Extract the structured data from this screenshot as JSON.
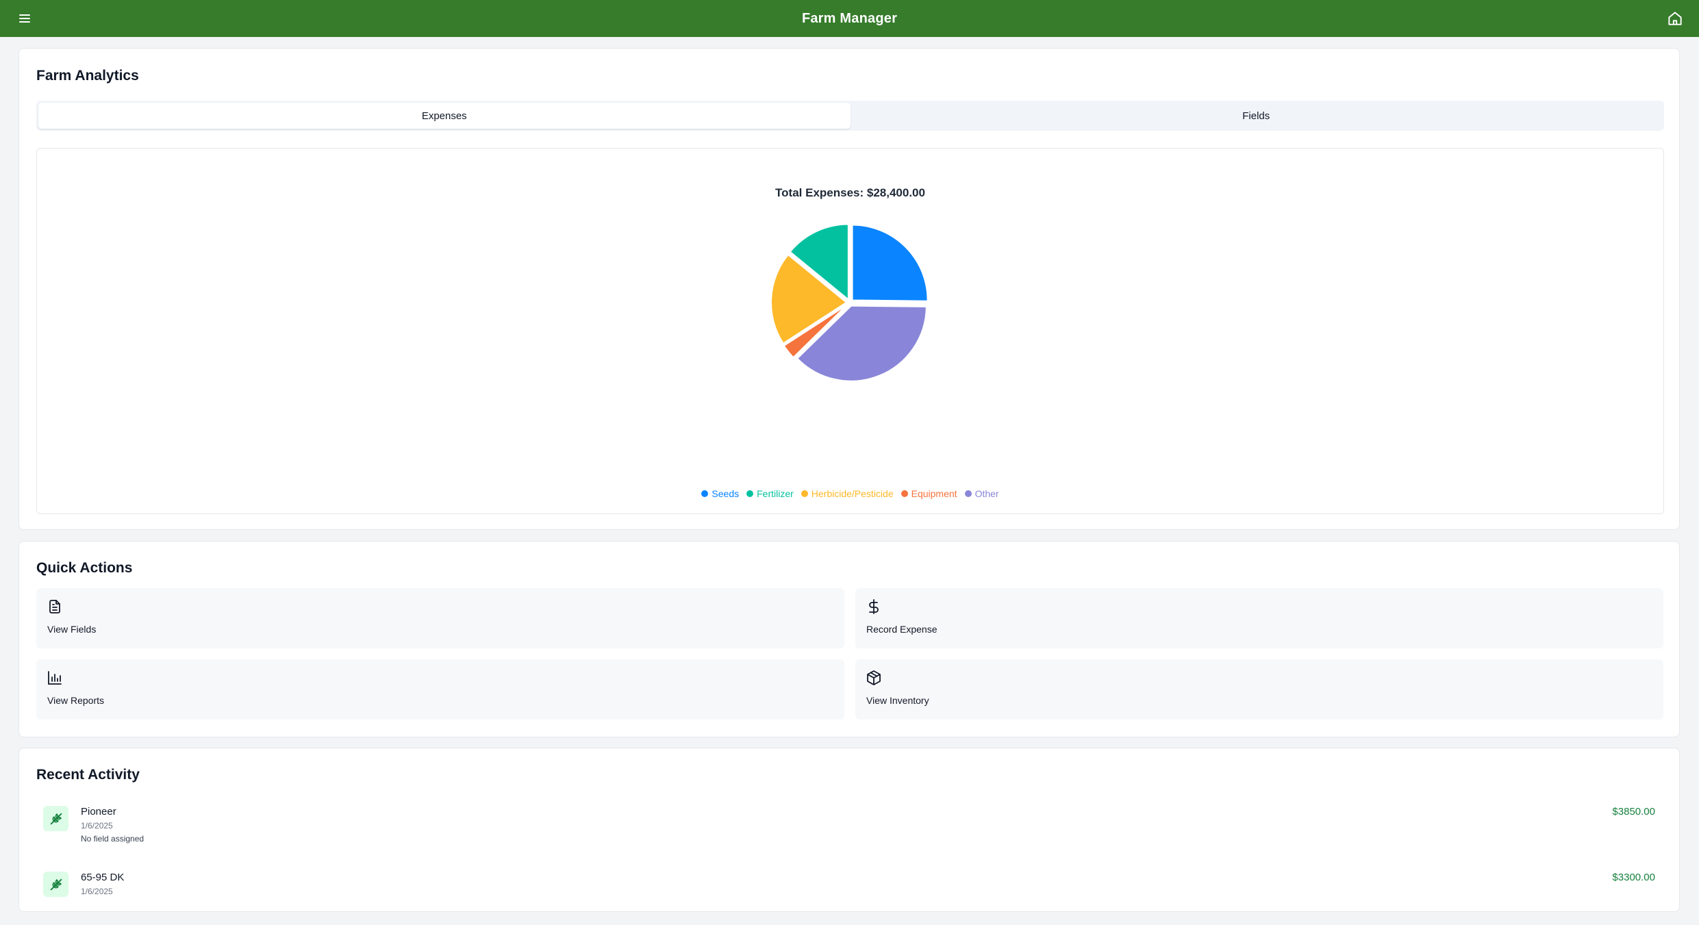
{
  "app": {
    "title": "Farm Manager"
  },
  "analytics": {
    "heading": "Farm Analytics",
    "tabs": [
      {
        "label": "Expenses",
        "active": true
      },
      {
        "label": "Fields",
        "active": false
      }
    ]
  },
  "chart_data": {
    "type": "pie",
    "title": "Total Expenses: $28,400.00",
    "series": [
      {
        "name": "Seeds",
        "value": 7150,
        "color": "#0a84ff"
      },
      {
        "name": "Other",
        "value": 10650,
        "color": "#8986d9"
      },
      {
        "name": "Equipment",
        "value": 900,
        "color": "#f5733c"
      },
      {
        "name": "Herbicide/Pesticide",
        "value": 5700,
        "color": "#fdb92a"
      },
      {
        "name": "Fertilizer",
        "value": 4000,
        "color": "#03c19f"
      }
    ],
    "legend": [
      {
        "name": "Seeds",
        "color": "#0a84ff"
      },
      {
        "name": "Fertilizer",
        "color": "#03c19f"
      },
      {
        "name": "Herbicide/Pesticide",
        "color": "#fdb92a"
      },
      {
        "name": "Equipment",
        "color": "#f5733c"
      },
      {
        "name": "Other",
        "color": "#8986d9"
      }
    ],
    "legend_placement": "bottom"
  },
  "quick_actions": {
    "heading": "Quick Actions",
    "items": [
      {
        "label": "View Fields",
        "icon": "document-icon"
      },
      {
        "label": "Record Expense",
        "icon": "dollar-icon"
      },
      {
        "label": "View Reports",
        "icon": "bar-chart-icon"
      },
      {
        "label": "View Inventory",
        "icon": "package-icon"
      }
    ]
  },
  "recent_activity": {
    "heading": "Recent Activity",
    "items": [
      {
        "name": "Pioneer",
        "date": "1/6/2025",
        "note": "No field assigned",
        "amount": "$3850.00",
        "icon": "wheat-icon"
      },
      {
        "name": "65-95 DK",
        "date": "1/6/2025",
        "note": "",
        "amount": "$3300.00",
        "icon": "wheat-icon"
      }
    ]
  },
  "colors": {
    "header": "#367c2b",
    "amount": "#15803d",
    "activity_icon_bg": "#dcfce7"
  }
}
